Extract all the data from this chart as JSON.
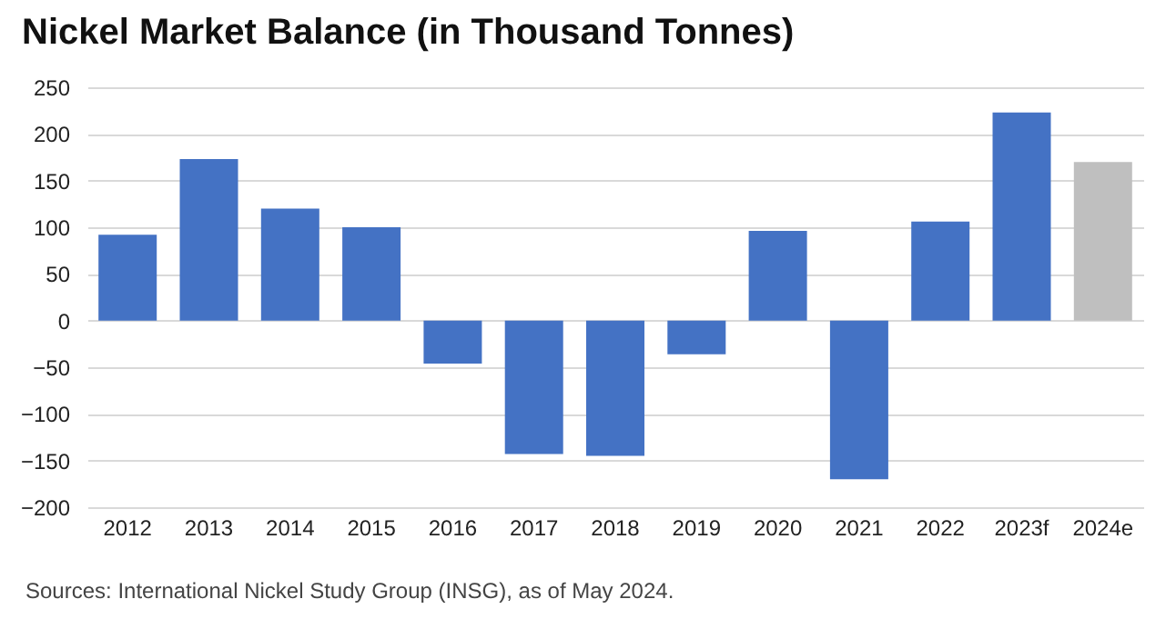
{
  "chart_data": {
    "type": "bar",
    "title": "Nickel Market Balance (in Thousand Tonnes)",
    "categories": [
      "2012",
      "2013",
      "2014",
      "2015",
      "2016",
      "2017",
      "2018",
      "2019",
      "2020",
      "2021",
      "2022",
      "2023f",
      "2024e"
    ],
    "values": [
      92,
      173,
      120,
      100,
      -46,
      -143,
      -145,
      -36,
      96,
      -170,
      106,
      223,
      170
    ],
    "colors": [
      "#4472c4",
      "#4472c4",
      "#4472c4",
      "#4472c4",
      "#4472c4",
      "#4472c4",
      "#4472c4",
      "#4472c4",
      "#4472c4",
      "#4472c4",
      "#4472c4",
      "#4472c4",
      "#bfbfbf"
    ],
    "ylim": [
      -200,
      250
    ],
    "yticks": [
      -200,
      -150,
      -100,
      -50,
      0,
      50,
      100,
      150,
      200,
      250
    ],
    "grid": "y",
    "legend": false,
    "annotations": [
      "Sources: International Nickel Study Group (INSG), as of May 2024."
    ]
  }
}
